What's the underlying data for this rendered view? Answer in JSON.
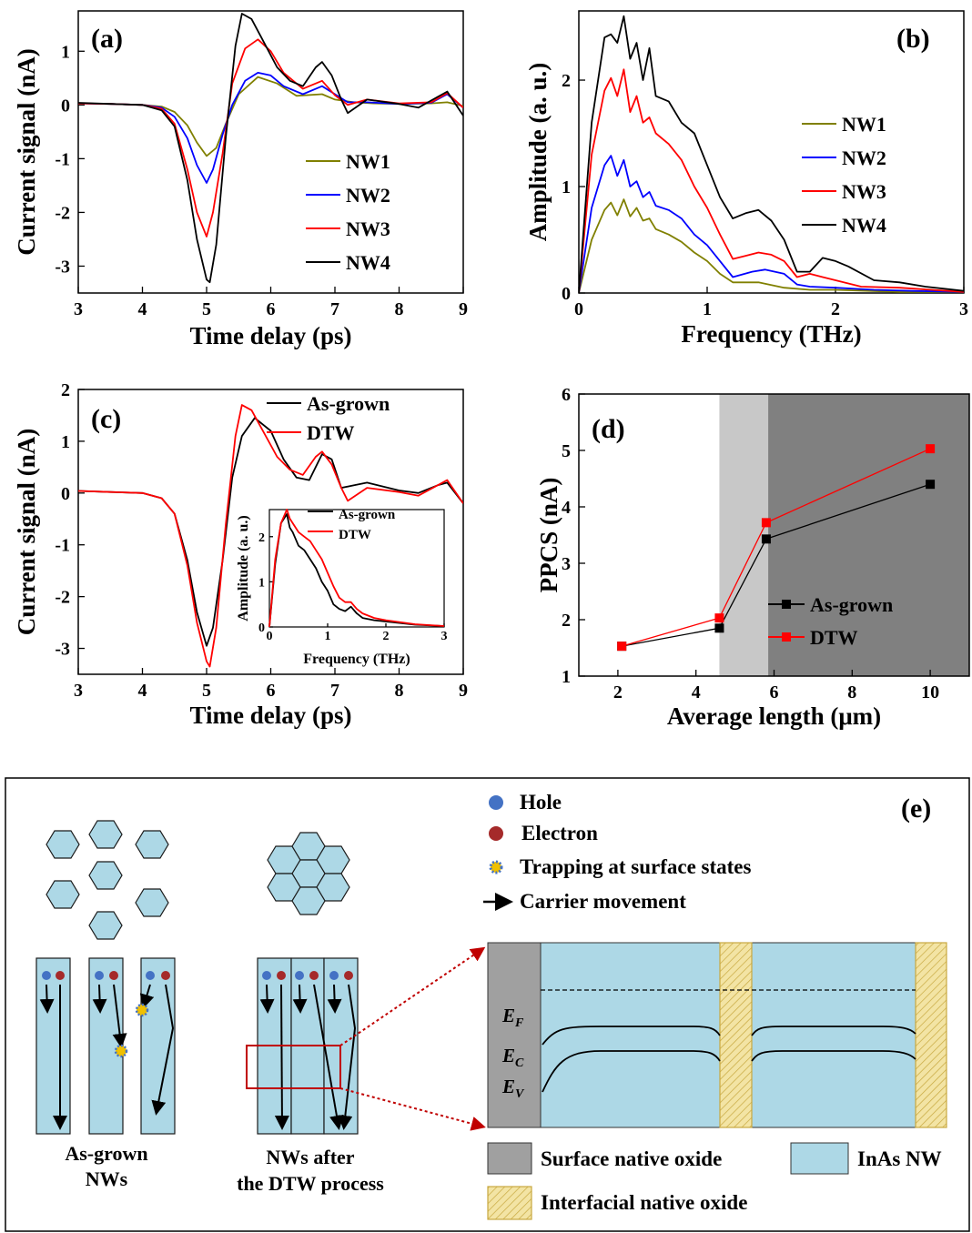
{
  "colors": {
    "NW1": "#808000",
    "NW2": "#0000ff",
    "NW3": "#ff0000",
    "NW4": "#000000",
    "as_grown": "#000000",
    "dtw": "#ff0000",
    "hole": "#4472c4",
    "electron": "#a52a2a",
    "nw_fill": "#add8e6",
    "surface_oxide": "#a0a0a0",
    "interfacial_oxide": "#e8d080",
    "shade_light": "#c8c8c8",
    "shade_dark": "#808080"
  },
  "chart_data": [
    {
      "id": "a",
      "type": "line",
      "panel_label": "(a)",
      "xlabel": "Time delay (ps)",
      "ylabel": "Current signal (nA)",
      "xlim": [
        3,
        9
      ],
      "ylim": [
        -3.5,
        1.75
      ],
      "xticks": [
        3,
        4,
        5,
        6,
        7,
        8,
        9
      ],
      "yticks": [
        -3,
        -2,
        -1,
        0,
        1
      ],
      "legend": "right-middle",
      "series": [
        {
          "name": "NW1",
          "color": "#808000",
          "x": [
            3,
            3.5,
            4,
            4.3,
            4.5,
            4.7,
            4.85,
            5.0,
            5.15,
            5.3,
            5.5,
            5.8,
            6.1,
            6.4,
            6.8,
            7.0,
            7.3,
            7.6,
            8.0,
            8.5,
            8.75,
            9.0
          ],
          "y": [
            0.03,
            0.02,
            0,
            -0.03,
            -0.13,
            -0.38,
            -0.7,
            -0.95,
            -0.8,
            -0.35,
            0.2,
            0.52,
            0.4,
            0.17,
            0.2,
            0.1,
            0.05,
            0.03,
            0.02,
            0.03,
            0.05,
            -0.02
          ]
        },
        {
          "name": "NW2",
          "color": "#0000ff",
          "x": [
            3,
            3.5,
            4,
            4.3,
            4.5,
            4.7,
            4.85,
            5.0,
            5.1,
            5.25,
            5.4,
            5.6,
            5.8,
            6.0,
            6.2,
            6.5,
            6.8,
            7.0,
            7.2,
            7.5,
            8.0,
            8.5,
            8.75,
            9.0
          ],
          "y": [
            0.03,
            0.02,
            0,
            -0.05,
            -0.22,
            -0.62,
            -1.12,
            -1.45,
            -1.2,
            -0.55,
            0.0,
            0.45,
            0.6,
            0.55,
            0.35,
            0.2,
            0.35,
            0.2,
            0.05,
            0.05,
            0.02,
            0.04,
            0.2,
            -0.05
          ]
        },
        {
          "name": "NW3",
          "color": "#ff0000",
          "x": [
            3,
            3.5,
            4,
            4.3,
            4.5,
            4.7,
            4.85,
            5.0,
            5.1,
            5.25,
            5.4,
            5.6,
            5.8,
            6.0,
            6.2,
            6.5,
            6.8,
            7.0,
            7.2,
            7.5,
            8.0,
            8.5,
            8.75,
            9.0
          ],
          "y": [
            0.03,
            0.02,
            0,
            -0.07,
            -0.35,
            -1.2,
            -2.0,
            -2.45,
            -2.0,
            -0.9,
            0.4,
            1.05,
            1.22,
            1.0,
            0.6,
            0.3,
            0.45,
            0.18,
            0.0,
            0.1,
            0.03,
            0.05,
            0.22,
            -0.05
          ]
        },
        {
          "name": "NW4",
          "color": "#000000",
          "x": [
            3,
            3.5,
            4,
            4.3,
            4.5,
            4.7,
            4.85,
            5.0,
            5.05,
            5.15,
            5.3,
            5.45,
            5.55,
            5.7,
            5.9,
            6.1,
            6.3,
            6.5,
            6.7,
            6.8,
            6.95,
            7.1,
            7.2,
            7.5,
            8.0,
            8.3,
            8.6,
            8.75,
            9.0
          ],
          "y": [
            0.04,
            0.02,
            0,
            -0.1,
            -0.4,
            -1.4,
            -2.5,
            -3.25,
            -3.3,
            -2.6,
            -0.6,
            1.1,
            1.7,
            1.6,
            1.15,
            0.7,
            0.45,
            0.35,
            0.7,
            0.8,
            0.55,
            0.1,
            -0.15,
            0.1,
            0.02,
            -0.05,
            0.15,
            0.25,
            -0.2
          ]
        }
      ]
    },
    {
      "id": "b",
      "type": "line",
      "panel_label": "(b)",
      "xlabel": "Frequency (THz)",
      "ylabel": "Amplitude (a. u.)",
      "xlim": [
        0,
        3
      ],
      "ylim": [
        0,
        2.65
      ],
      "xticks": [
        0,
        1,
        2,
        3
      ],
      "yticks": [
        0,
        1,
        2
      ],
      "legend": "right-middle",
      "series": [
        {
          "name": "NW1",
          "color": "#808000",
          "x": [
            0,
            0.1,
            0.2,
            0.25,
            0.3,
            0.35,
            0.4,
            0.45,
            0.5,
            0.55,
            0.6,
            0.7,
            0.8,
            0.9,
            1.0,
            1.1,
            1.2,
            1.4,
            1.6,
            1.8,
            2.0,
            2.5,
            3.0
          ],
          "y": [
            0,
            0.5,
            0.78,
            0.85,
            0.73,
            0.88,
            0.72,
            0.8,
            0.68,
            0.7,
            0.6,
            0.55,
            0.48,
            0.38,
            0.3,
            0.18,
            0.1,
            0.1,
            0.05,
            0.03,
            0.03,
            0.01,
            0.01
          ]
        },
        {
          "name": "NW2",
          "color": "#0000ff",
          "x": [
            0,
            0.1,
            0.2,
            0.25,
            0.3,
            0.35,
            0.4,
            0.45,
            0.5,
            0.55,
            0.6,
            0.7,
            0.8,
            0.9,
            1.0,
            1.1,
            1.2,
            1.35,
            1.45,
            1.6,
            1.7,
            1.8,
            2.0,
            2.3,
            2.6,
            3.0
          ],
          "y": [
            0,
            0.8,
            1.2,
            1.29,
            1.1,
            1.25,
            1.0,
            1.05,
            0.9,
            0.95,
            0.82,
            0.78,
            0.7,
            0.55,
            0.45,
            0.3,
            0.15,
            0.2,
            0.22,
            0.18,
            0.08,
            0.06,
            0.05,
            0.03,
            0.02,
            0.01
          ]
        },
        {
          "name": "NW3",
          "color": "#ff0000",
          "x": [
            0,
            0.1,
            0.2,
            0.25,
            0.3,
            0.35,
            0.4,
            0.45,
            0.5,
            0.55,
            0.6,
            0.7,
            0.8,
            0.9,
            1.0,
            1.1,
            1.2,
            1.3,
            1.4,
            1.5,
            1.6,
            1.7,
            1.8,
            1.9,
            2.0,
            2.2,
            2.5,
            3.0
          ],
          "y": [
            0,
            1.3,
            1.9,
            2.02,
            1.85,
            2.1,
            1.7,
            1.85,
            1.6,
            1.65,
            1.5,
            1.4,
            1.25,
            1.0,
            0.8,
            0.55,
            0.32,
            0.35,
            0.38,
            0.36,
            0.3,
            0.15,
            0.18,
            0.15,
            0.12,
            0.06,
            0.05,
            0.01
          ]
        },
        {
          "name": "NW4",
          "color": "#000000",
          "x": [
            0,
            0.1,
            0.2,
            0.25,
            0.3,
            0.35,
            0.4,
            0.45,
            0.5,
            0.55,
            0.6,
            0.7,
            0.8,
            0.9,
            1.0,
            1.1,
            1.2,
            1.3,
            1.4,
            1.5,
            1.6,
            1.7,
            1.8,
            1.9,
            2.0,
            2.1,
            2.3,
            2.5,
            2.7,
            3.0
          ],
          "y": [
            0,
            1.6,
            2.4,
            2.43,
            2.35,
            2.6,
            2.2,
            2.35,
            2.0,
            2.3,
            1.85,
            1.8,
            1.6,
            1.5,
            1.2,
            0.9,
            0.7,
            0.75,
            0.78,
            0.68,
            0.5,
            0.2,
            0.2,
            0.33,
            0.3,
            0.25,
            0.12,
            0.1,
            0.06,
            0.02
          ]
        }
      ]
    },
    {
      "id": "c",
      "type": "line",
      "panel_label": "(c)",
      "xlabel": "Time delay (ps)",
      "ylabel": "Current signal (nA)",
      "xlim": [
        3,
        9
      ],
      "ylim": [
        -3.5,
        2.0
      ],
      "xticks": [
        3,
        4,
        5,
        6,
        7,
        8,
        9
      ],
      "yticks": [
        -3,
        -2,
        -1,
        0,
        1,
        2
      ],
      "legend": "top-right",
      "series": [
        {
          "name": "As-grown",
          "color": "#000000",
          "x": [
            3,
            3.5,
            4,
            4.3,
            4.5,
            4.7,
            4.85,
            5.0,
            5.1,
            5.25,
            5.4,
            5.55,
            5.75,
            6.0,
            6.2,
            6.4,
            6.6,
            6.8,
            6.95,
            7.1,
            7.3,
            7.5,
            8.0,
            8.3,
            8.6,
            8.75,
            9.0
          ],
          "y": [
            0.04,
            0.02,
            0,
            -0.1,
            -0.4,
            -1.3,
            -2.3,
            -2.95,
            -2.6,
            -1.3,
            0.3,
            1.1,
            1.45,
            1.2,
            0.65,
            0.3,
            0.25,
            0.75,
            0.65,
            0.1,
            0.15,
            0.2,
            0.05,
            0.0,
            0.15,
            0.2,
            -0.2
          ]
        },
        {
          "name": "DTW",
          "color": "#ff0000",
          "x": [
            3,
            3.5,
            4,
            4.3,
            4.5,
            4.7,
            4.85,
            5.0,
            5.05,
            5.15,
            5.3,
            5.45,
            5.55,
            5.7,
            5.9,
            6.1,
            6.3,
            6.5,
            6.7,
            6.8,
            6.95,
            7.1,
            7.2,
            7.5,
            8.0,
            8.3,
            8.6,
            8.75,
            9.0
          ],
          "y": [
            0.04,
            0.02,
            0,
            -0.1,
            -0.4,
            -1.4,
            -2.5,
            -3.25,
            -3.35,
            -2.6,
            -0.6,
            1.1,
            1.7,
            1.6,
            1.15,
            0.7,
            0.45,
            0.35,
            0.7,
            0.8,
            0.55,
            0.1,
            -0.15,
            0.1,
            0.02,
            -0.05,
            0.15,
            0.25,
            -0.2
          ]
        }
      ],
      "inset": {
        "xlabel": "Frequency (THz)",
        "ylabel": "Amplitude (a. u.)",
        "xlim": [
          0,
          3
        ],
        "ylim": [
          0,
          2.6
        ],
        "xticks": [
          0,
          1,
          2,
          3
        ],
        "yticks": [
          0,
          1,
          2
        ],
        "series": [
          {
            "name": "As-grown",
            "color": "#000000",
            "x": [
              0,
              0.1,
              0.2,
              0.3,
              0.35,
              0.4,
              0.5,
              0.6,
              0.7,
              0.8,
              0.9,
              1.0,
              1.1,
              1.2,
              1.3,
              1.4,
              1.5,
              1.6,
              1.8,
              2.0,
              2.5,
              3.0
            ],
            "y": [
              0,
              1.4,
              2.3,
              2.5,
              2.2,
              2.1,
              1.8,
              1.7,
              1.5,
              1.3,
              1.0,
              0.8,
              0.5,
              0.4,
              0.35,
              0.45,
              0.3,
              0.2,
              0.15,
              0.12,
              0.05,
              0.02
            ]
          },
          {
            "name": "DTW",
            "color": "#ff0000",
            "x": [
              0,
              0.1,
              0.2,
              0.3,
              0.35,
              0.4,
              0.5,
              0.6,
              0.7,
              0.8,
              0.9,
              1.0,
              1.1,
              1.2,
              1.3,
              1.4,
              1.5,
              1.6,
              1.8,
              2.0,
              2.5,
              3.0
            ],
            "y": [
              0,
              1.5,
              2.3,
              2.6,
              2.4,
              2.3,
              2.1,
              2.0,
              1.9,
              1.7,
              1.5,
              1.2,
              0.9,
              0.65,
              0.55,
              0.55,
              0.4,
              0.3,
              0.2,
              0.15,
              0.06,
              0.02
            ]
          }
        ]
      }
    },
    {
      "id": "d",
      "type": "line",
      "panel_label": "(d)",
      "xlabel": "Average length (μm)",
      "ylabel": "PPCS (nA)",
      "xlim": [
        1,
        11
      ],
      "ylim": [
        1,
        6
      ],
      "xticks": [
        2,
        4,
        6,
        8,
        10
      ],
      "yticks": [
        1,
        2,
        3,
        4,
        5,
        6
      ],
      "shaded_regions": [
        {
          "x": [
            4.6,
            5.85
          ],
          "color": "#c8c8c8"
        },
        {
          "x": [
            5.85,
            11
          ],
          "color": "#808080"
        }
      ],
      "legend": "bottom-right",
      "series": [
        {
          "name": "As-grown",
          "color": "#000000",
          "marker": "square",
          "x": [
            2.1,
            4.6,
            5.8,
            10.0
          ],
          "y": [
            1.53,
            1.85,
            3.43,
            4.4
          ]
        },
        {
          "name": "DTW",
          "color": "#ff0000",
          "marker": "square",
          "x": [
            2.1,
            4.6,
            5.8,
            10.0
          ],
          "y": [
            1.53,
            2.03,
            3.72,
            5.03
          ]
        }
      ]
    }
  ],
  "diagram": {
    "panel_label": "(e)",
    "legend": {
      "hole": "Hole",
      "electron": "Electron",
      "trapping": "Trapping at surface states",
      "movement": "Carrier movement"
    },
    "caption_left_1": "As-grown",
    "caption_left_2": "NWs",
    "caption_mid_1": "NWs after",
    "caption_mid_2": "the DTW process",
    "band_EF": "E",
    "band_EF_sub": "F",
    "band_EC": "E",
    "band_EC_sub": "C",
    "band_EV": "E",
    "band_EV_sub": "V",
    "key_surface": "Surface native oxide",
    "key_inas": "InAs NW",
    "key_interfacial": "Interfacial native oxide"
  }
}
